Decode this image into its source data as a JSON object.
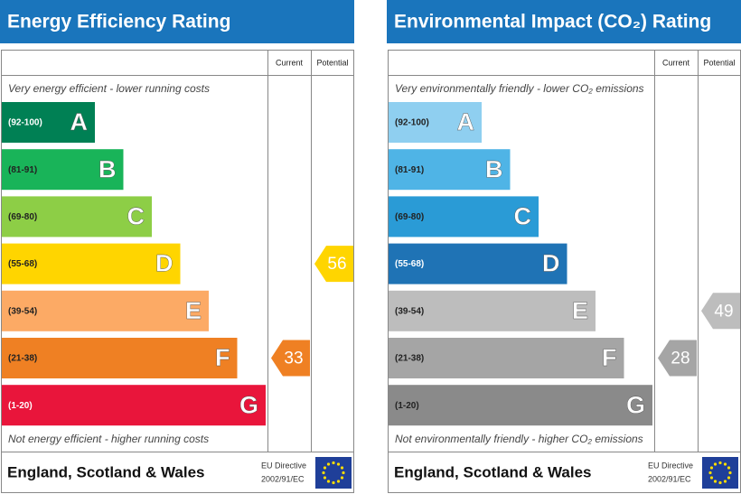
{
  "panels": [
    {
      "title": "Energy Efficiency Rating",
      "headers": {
        "current": "Current",
        "potential": "Potential"
      },
      "top_note": "Very energy efficient - lower running costs",
      "bottom_note": "Not energy efficient - higher running costs",
      "bands": [
        {
          "range": "(92-100)",
          "letter": "A",
          "color": "#008054"
        },
        {
          "range": "(81-91)",
          "letter": "B",
          "color": "#19b459"
        },
        {
          "range": "(69-80)",
          "letter": "C",
          "color": "#8dce46"
        },
        {
          "range": "(55-68)",
          "letter": "D",
          "color": "#ffd500"
        },
        {
          "range": "(39-54)",
          "letter": "E",
          "color": "#fcaa65"
        },
        {
          "range": "(21-38)",
          "letter": "F",
          "color": "#ef8023"
        },
        {
          "range": "(1-20)",
          "letter": "G",
          "color": "#e9153b"
        }
      ],
      "current": 33,
      "potential": 56,
      "footer": "England, Scotland & Wales",
      "directive": [
        "EU Directive",
        "2002/91/EC"
      ]
    },
    {
      "title": "Environmental Impact (CO₂) Rating",
      "headers": {
        "current": "Current",
        "potential": "Potential"
      },
      "top_note": "Very environmentally friendly - lower CO₂ emissions",
      "bottom_note": "Not environmentally friendly - higher CO₂ emissions",
      "bands": [
        {
          "range": "(92-100)",
          "letter": "A",
          "color": "#8fcff0"
        },
        {
          "range": "(81-91)",
          "letter": "B",
          "color": "#4fb4e6"
        },
        {
          "range": "(69-80)",
          "letter": "C",
          "color": "#2a9bd6"
        },
        {
          "range": "(55-68)",
          "letter": "D",
          "color": "#1f73b5"
        },
        {
          "range": "(39-54)",
          "letter": "E",
          "color": "#bdbdbd"
        },
        {
          "range": "(21-38)",
          "letter": "F",
          "color": "#a5a5a5"
        },
        {
          "range": "(1-20)",
          "letter": "G",
          "color": "#8a8a8a"
        }
      ],
      "current": 28,
      "potential": 49,
      "footer": "England, Scotland & Wales",
      "directive": [
        "EU Directive",
        "2002/91/EC"
      ]
    }
  ]
}
